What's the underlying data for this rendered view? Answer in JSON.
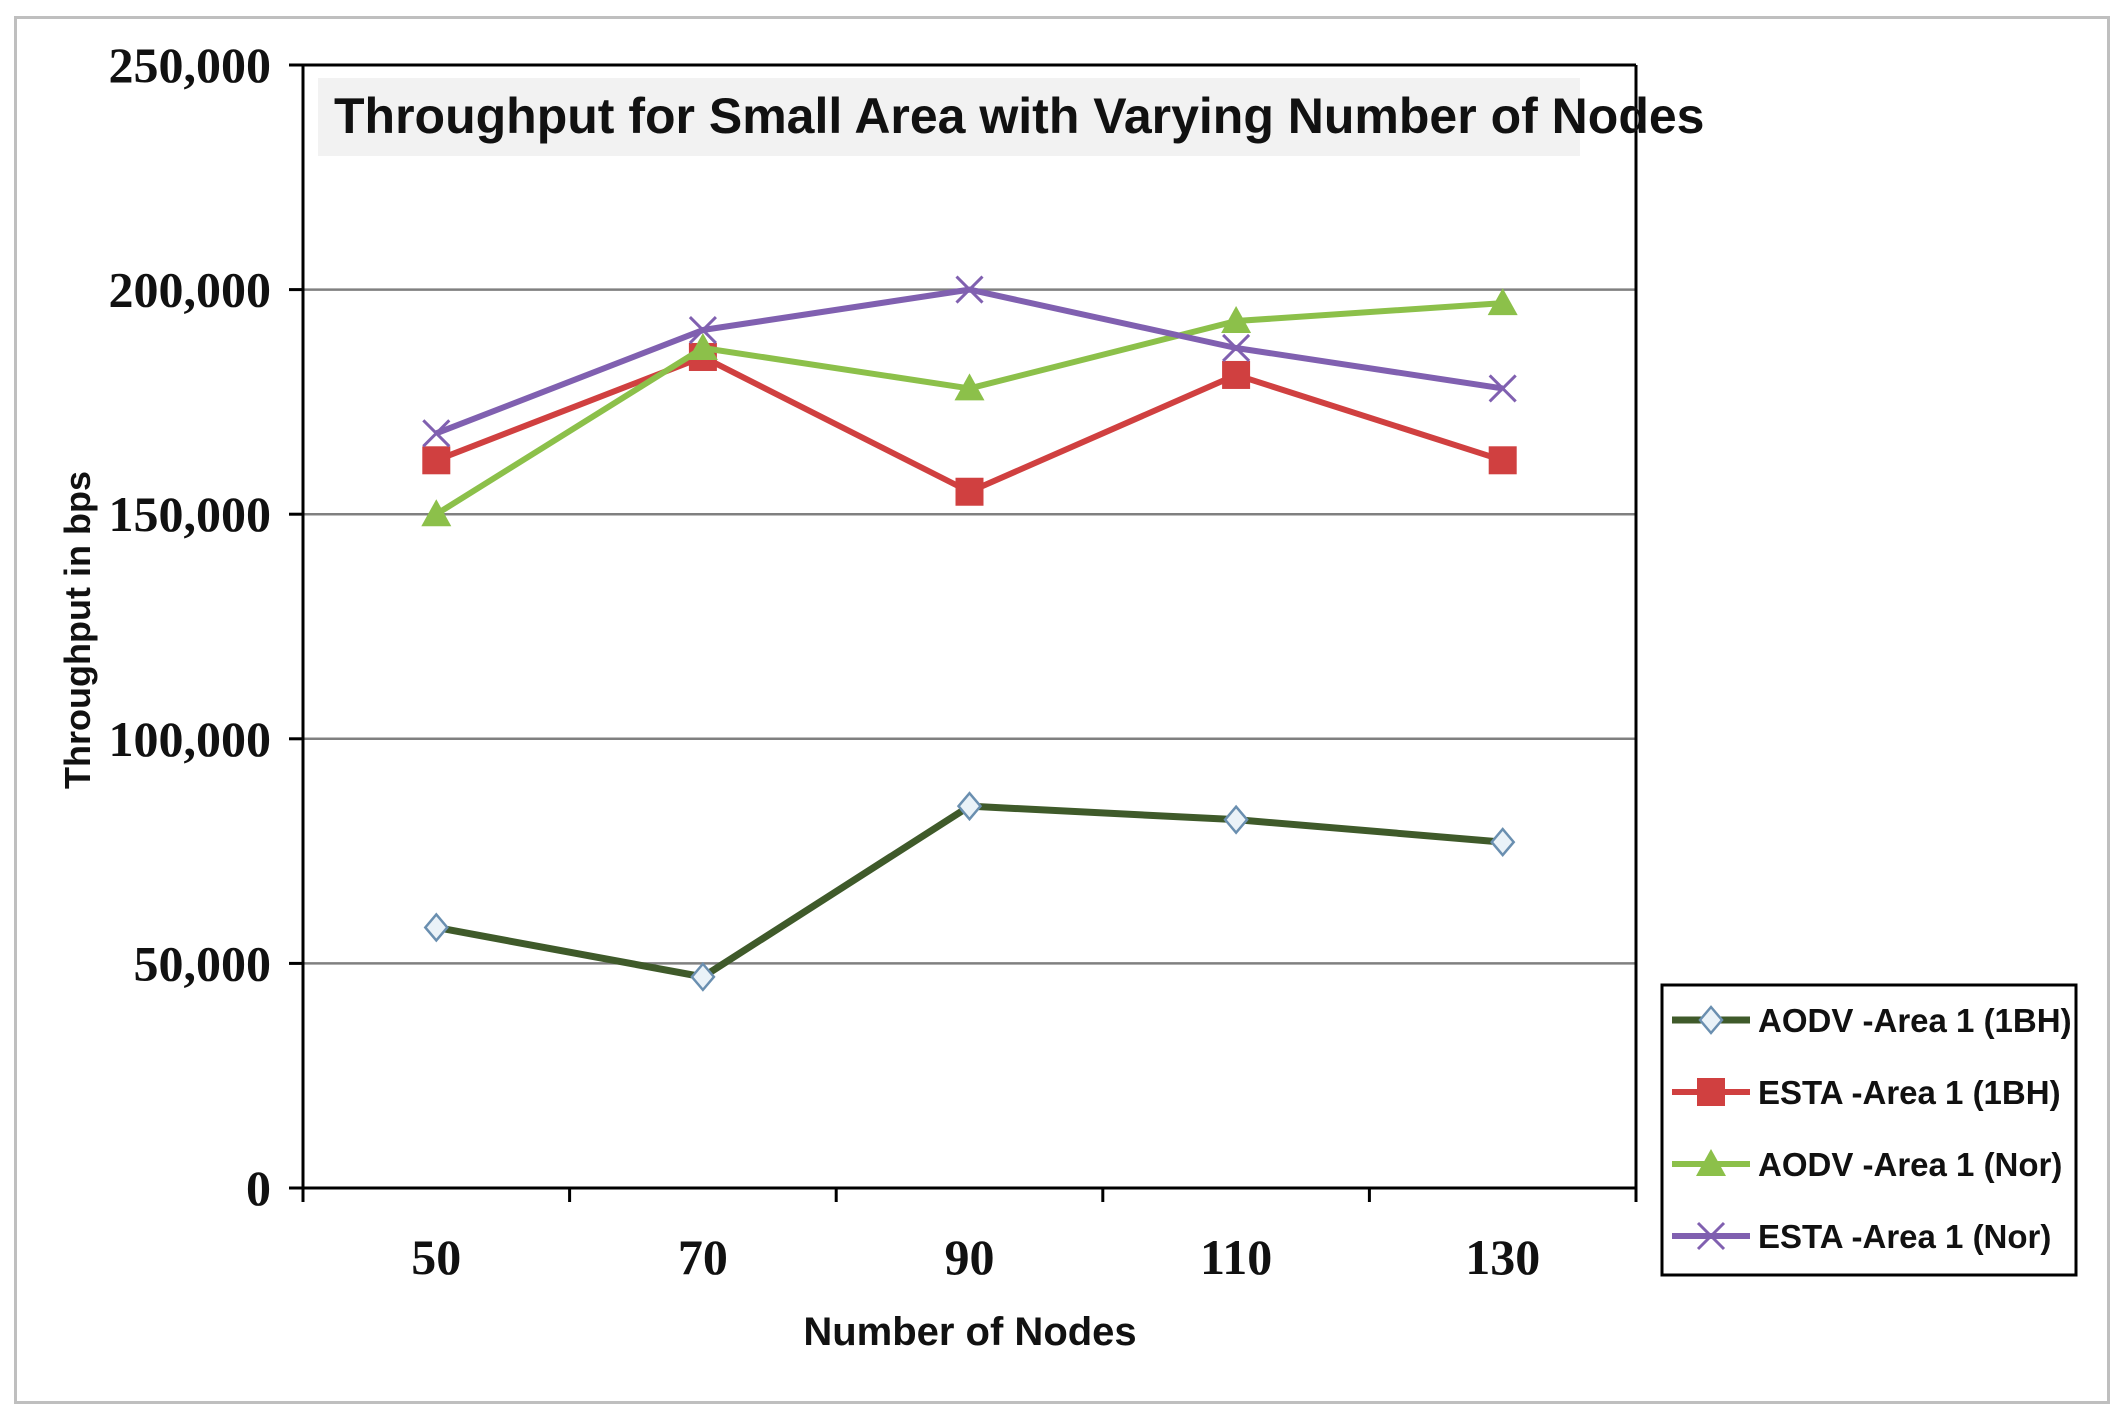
{
  "chart_data": {
    "type": "line",
    "title": "Throughput for Small Area with Varying Number of Nodes",
    "xlabel": "Number of Nodes",
    "ylabel": "Throughput in bps",
    "categories": [
      "50",
      "70",
      "90",
      "110",
      "130"
    ],
    "ylim": [
      0,
      250000
    ],
    "yticks": [
      0,
      50000,
      100000,
      150000,
      200000,
      250000
    ],
    "ytick_labels": [
      "0",
      "50,000",
      "100,000",
      "150,000",
      "200,000",
      "250,000"
    ],
    "grid": true,
    "legend_position": "bottom-right",
    "series": [
      {
        "name": "AODV -Area 1 (1BH)",
        "values": [
          58000,
          47000,
          85000,
          82000,
          77000
        ],
        "color": "#3f5a2a",
        "marker": "diamond"
      },
      {
        "name": "ESTA -Area 1 (1BH)",
        "values": [
          162000,
          185000,
          155000,
          181000,
          162000
        ],
        "color": "#d04040",
        "marker": "square"
      },
      {
        "name": "AODV -Area 1 (Nor)",
        "values": [
          150000,
          187000,
          178000,
          193000,
          197000
        ],
        "color": "#8cc04a",
        "marker": "triangle"
      },
      {
        "name": "ESTA -Area 1 (Nor)",
        "values": [
          168000,
          191000,
          200000,
          187000,
          178000
        ],
        "color": "#8060b0",
        "marker": "x"
      }
    ]
  }
}
